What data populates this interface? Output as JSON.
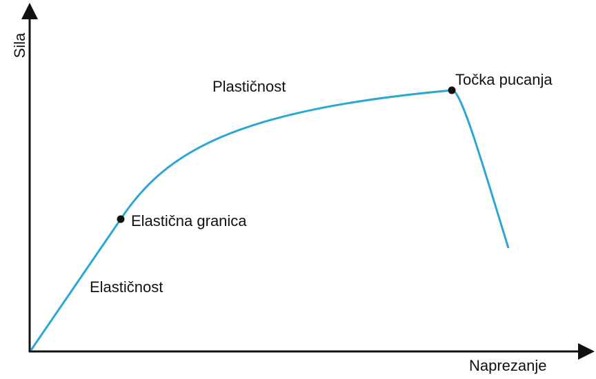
{
  "axes": {
    "y_label": "Sila",
    "x_label": "Naprezanje"
  },
  "regions": {
    "elastic": "Elastičnost",
    "plastic": "Plastičnost"
  },
  "points": {
    "elastic_limit": "Elastična granica",
    "break_point": "Točka pucanja"
  }
}
